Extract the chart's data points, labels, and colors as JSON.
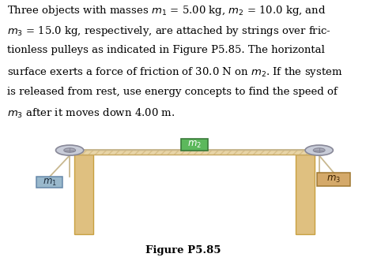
{
  "figure_label": "Figure P5.85",
  "bg_color": "#ffffff",
  "text_color": "#000000",
  "table_top_color": "#e8d5a8",
  "table_top_edge_color": "#c8a860",
  "table_leg_color": "#dfc080",
  "table_leg_edge_color": "#c8a040",
  "m2_color": "#5cb85c",
  "m2_edge_color": "#3a7a3a",
  "m1_color": "#99b8cc",
  "m1_edge_color": "#6688aa",
  "m3_color": "#d4a96a",
  "m3_edge_color": "#a07830",
  "string_color": "#c8b890",
  "pulley_outer_color": "#c8ccd8",
  "pulley_inner_color": "#a8aab8",
  "pulley_edge_color": "#888898",
  "hatch_color": "#c0a060"
}
